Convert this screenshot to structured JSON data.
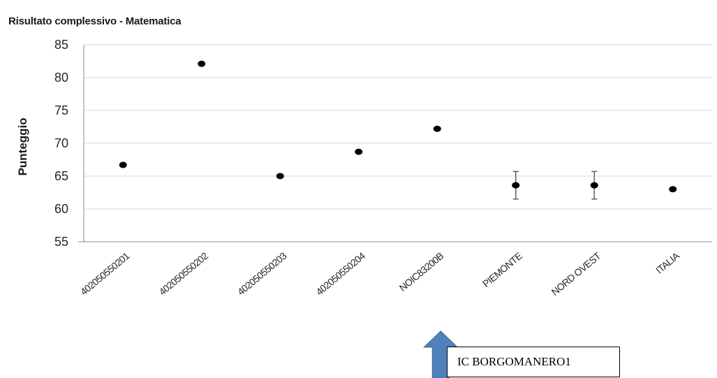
{
  "chart_data": {
    "type": "scatter",
    "title": "Risultato complessivo - Matematica",
    "ylabel": "Punteggio",
    "xlabel": "",
    "ylim": [
      55,
      85
    ],
    "yticks": [
      55,
      60,
      65,
      70,
      75,
      80,
      85
    ],
    "grid": true,
    "legend": "none",
    "categories": [
      "402050550201",
      "402050550202",
      "402050550203",
      "402050550204",
      "NOIC83200B",
      "PIEMONTE",
      "NORD OVEST",
      "ITALIA"
    ],
    "values": [
      66.7,
      82.1,
      65.0,
      68.7,
      72.2,
      63.6,
      63.6,
      63.0
    ],
    "error_bars": [
      null,
      null,
      null,
      null,
      null,
      [
        61.5,
        65.7
      ],
      [
        61.5,
        65.7
      ],
      null
    ],
    "point_color": "#000000",
    "grid_color": "#d9d9d9",
    "annotation": {
      "label": "IC BORGOMANERO1",
      "arrow_color": "#4f81bd",
      "target_category": "NOIC83200B"
    }
  }
}
